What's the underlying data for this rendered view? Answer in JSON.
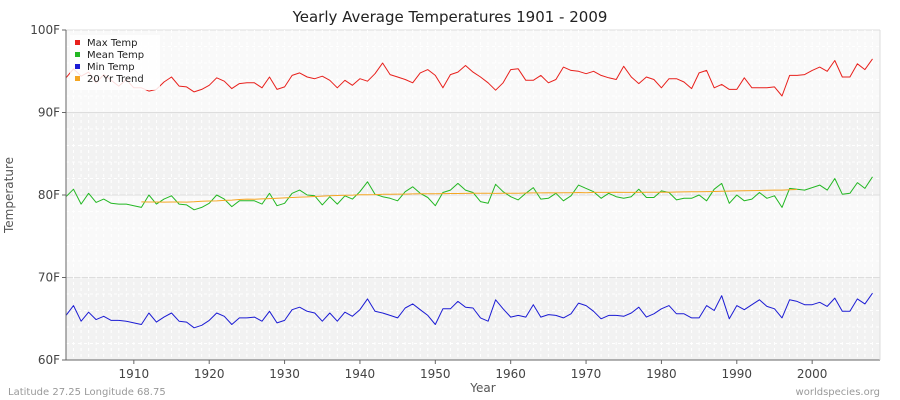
{
  "chart_data": {
    "type": "line",
    "title": "Yearly Average Temperatures 1901 - 2009",
    "xlabel": "Year",
    "ylabel": "Temperature",
    "xlim": [
      1901,
      2009
    ],
    "ylim": [
      60,
      100
    ],
    "x_ticks": [
      1910,
      1920,
      1930,
      1940,
      1950,
      1960,
      1970,
      1980,
      1990,
      2000
    ],
    "y_ticks": [
      {
        "value": 60,
        "label": "60F"
      },
      {
        "value": 70,
        "label": "70F"
      },
      {
        "value": 80,
        "label": "80F"
      },
      {
        "value": 90,
        "label": "90F"
      },
      {
        "value": 100,
        "label": "100F"
      }
    ],
    "grid": true,
    "legend_position": "top-left",
    "x_start": 1901,
    "series": [
      {
        "name": "Max Temp",
        "color": "#e8201c",
        "values": [
          94.2,
          95.3,
          94.4,
          94.9,
          93.6,
          94.6,
          93.9,
          93.2,
          94.0,
          93.0,
          93.0,
          92.6,
          92.8,
          93.7,
          94.3,
          93.2,
          93.1,
          92.5,
          92.8,
          93.3,
          94.2,
          93.8,
          92.9,
          93.5,
          93.6,
          93.6,
          93.0,
          94.3,
          92.8,
          93.1,
          94.5,
          94.8,
          94.3,
          94.1,
          94.4,
          93.9,
          93.0,
          93.9,
          93.3,
          94.1,
          93.8,
          94.7,
          96.0,
          94.6,
          94.3,
          94.0,
          93.6,
          94.8,
          95.2,
          94.5,
          93.0,
          94.6,
          94.9,
          95.7,
          94.9,
          94.3,
          93.6,
          92.7,
          93.6,
          95.2,
          95.3,
          93.9,
          93.9,
          94.5,
          93.6,
          94.0,
          95.5,
          95.1,
          95.0,
          94.7,
          95.0,
          94.5,
          94.2,
          94.0,
          95.6,
          94.3,
          93.5,
          94.3,
          94.0,
          93.0,
          94.1,
          94.1,
          93.7,
          92.9,
          94.8,
          95.1,
          93.0,
          93.4,
          92.8,
          92.8,
          94.2,
          93.0,
          93.0,
          93.0,
          93.1,
          92.0,
          94.5,
          94.5,
          94.6,
          95.1,
          95.5,
          95.0,
          96.3,
          94.3,
          94.3,
          95.9,
          95.2,
          96.5
        ]
      },
      {
        "name": "Mean Temp",
        "color": "#23b723",
        "values": [
          79.8,
          80.7,
          78.9,
          80.2,
          79.1,
          79.5,
          79.0,
          78.9,
          78.9,
          78.7,
          78.5,
          80.0,
          78.9,
          79.5,
          79.9,
          78.9,
          78.8,
          78.2,
          78.5,
          79.0,
          80.0,
          79.5,
          78.6,
          79.3,
          79.3,
          79.3,
          78.9,
          80.2,
          78.7,
          79.0,
          80.2,
          80.6,
          80.0,
          79.9,
          78.8,
          79.8,
          78.9,
          79.9,
          79.5,
          80.4,
          81.6,
          80.1,
          79.8,
          79.6,
          79.3,
          80.4,
          81.0,
          80.2,
          79.7,
          78.7,
          80.3,
          80.6,
          81.4,
          80.6,
          80.3,
          79.2,
          79.0,
          81.3,
          80.4,
          79.8,
          79.4,
          80.2,
          80.9,
          79.5,
          79.6,
          80.2,
          79.3,
          79.9,
          81.2,
          80.8,
          80.4,
          79.6,
          80.2,
          79.8,
          79.6,
          79.8,
          80.7,
          79.7,
          79.7,
          80.5,
          80.3,
          79.4,
          79.6,
          79.6,
          80.0,
          79.3,
          80.7,
          81.4,
          79.0,
          80.0,
          79.3,
          79.5,
          80.3,
          79.6,
          79.9,
          78.5,
          80.8,
          80.7,
          80.6,
          80.9,
          81.2,
          80.6,
          82.0,
          80.1,
          80.2,
          81.5,
          80.8,
          82.2
        ]
      },
      {
        "name": "Min Temp",
        "color": "#1c1cd4",
        "values": [
          65.4,
          66.6,
          64.7,
          65.8,
          64.9,
          65.3,
          64.8,
          64.8,
          64.7,
          64.5,
          64.3,
          65.7,
          64.6,
          65.2,
          65.7,
          64.7,
          64.6,
          63.9,
          64.2,
          64.8,
          65.7,
          65.3,
          64.3,
          65.1,
          65.1,
          65.2,
          64.7,
          65.9,
          64.5,
          64.8,
          66.1,
          66.4,
          65.9,
          65.7,
          64.7,
          65.7,
          64.7,
          65.8,
          65.3,
          66.1,
          67.4,
          65.9,
          65.7,
          65.4,
          65.1,
          66.3,
          66.8,
          66.1,
          65.4,
          64.3,
          66.2,
          66.2,
          67.1,
          66.4,
          66.3,
          65.1,
          64.7,
          67.3,
          66.2,
          65.2,
          65.4,
          65.2,
          66.7,
          65.2,
          65.5,
          65.4,
          65.1,
          65.6,
          66.9,
          66.6,
          65.9,
          65.0,
          65.4,
          65.4,
          65.3,
          65.7,
          66.4,
          65.2,
          65.6,
          66.2,
          66.6,
          65.6,
          65.6,
          65.1,
          65.1,
          66.6,
          66.0,
          67.8,
          65.0,
          66.6,
          66.1,
          66.7,
          67.3,
          66.5,
          66.2,
          65.1,
          67.3,
          67.1,
          66.7,
          66.7,
          67.0,
          66.5,
          67.5,
          65.9,
          65.9,
          67.4,
          66.8,
          68.1
        ]
      },
      {
        "name": "20 Yr Trend",
        "color": "#f5a623",
        "x_start": 1911,
        "values": [
          79.16,
          79.15,
          79.15,
          79.14,
          79.15,
          79.15,
          79.14,
          79.17,
          79.24,
          79.27,
          79.29,
          79.34,
          79.38,
          79.46,
          79.5,
          79.49,
          79.53,
          79.56,
          79.6,
          79.65,
          79.7,
          79.74,
          79.77,
          79.82,
          79.87,
          79.92,
          79.94,
          79.97,
          79.99,
          80.02,
          80.04,
          80.05,
          80.08,
          80.09,
          80.11,
          80.11,
          80.13,
          80.15,
          80.16,
          80.15,
          80.17,
          80.18,
          80.18,
          80.19,
          80.21,
          80.21,
          80.21,
          80.19,
          80.2,
          80.22,
          80.21,
          80.24,
          80.26,
          80.26,
          80.27,
          80.26,
          80.27,
          80.28,
          80.3,
          80.28,
          80.31,
          80.32,
          80.31,
          80.33,
          80.31,
          80.31,
          80.32,
          80.33,
          80.34,
          80.34,
          80.34,
          80.36,
          80.38,
          80.39,
          80.39,
          80.41,
          80.43,
          80.45,
          80.47,
          80.5,
          80.52,
          80.53,
          80.55,
          80.57,
          80.59,
          80.6,
          80.64,
          80.67
        ]
      }
    ]
  },
  "footer": {
    "location": "Latitude 27.25 Longitude 68.75",
    "source": "worldspecies.org"
  }
}
